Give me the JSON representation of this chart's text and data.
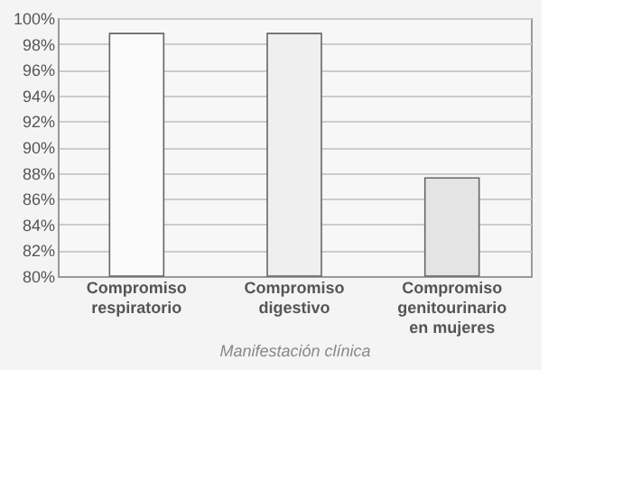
{
  "chart_data": {
    "type": "bar",
    "xlabel": "Manifestación clínica",
    "categories": [
      "Compromiso\nrespiratorio",
      "Compromiso\ndigestivo",
      "Compromiso\ngenitourinario\nen mujeres"
    ],
    "values": [
      98.8,
      98.8,
      87.6
    ],
    "colors": [
      "#fbfbfb",
      "#efefef",
      "#e4e4e4"
    ],
    "ylim": [
      80,
      100
    ],
    "yticks": [
      {
        "value": 80,
        "label": "80%"
      },
      {
        "value": 82,
        "label": "82%"
      },
      {
        "value": 84,
        "label": "84%"
      },
      {
        "value": 86,
        "label": "86%"
      },
      {
        "value": 88,
        "label": "88%"
      },
      {
        "value": 90,
        "label": "90%"
      },
      {
        "value": 92,
        "label": "92%"
      },
      {
        "value": 94,
        "label": "94%"
      },
      {
        "value": 96,
        "label": "96%"
      },
      {
        "value": 98,
        "label": "98%"
      },
      {
        "value": 100,
        "label": "100%"
      }
    ],
    "grid": "y"
  }
}
